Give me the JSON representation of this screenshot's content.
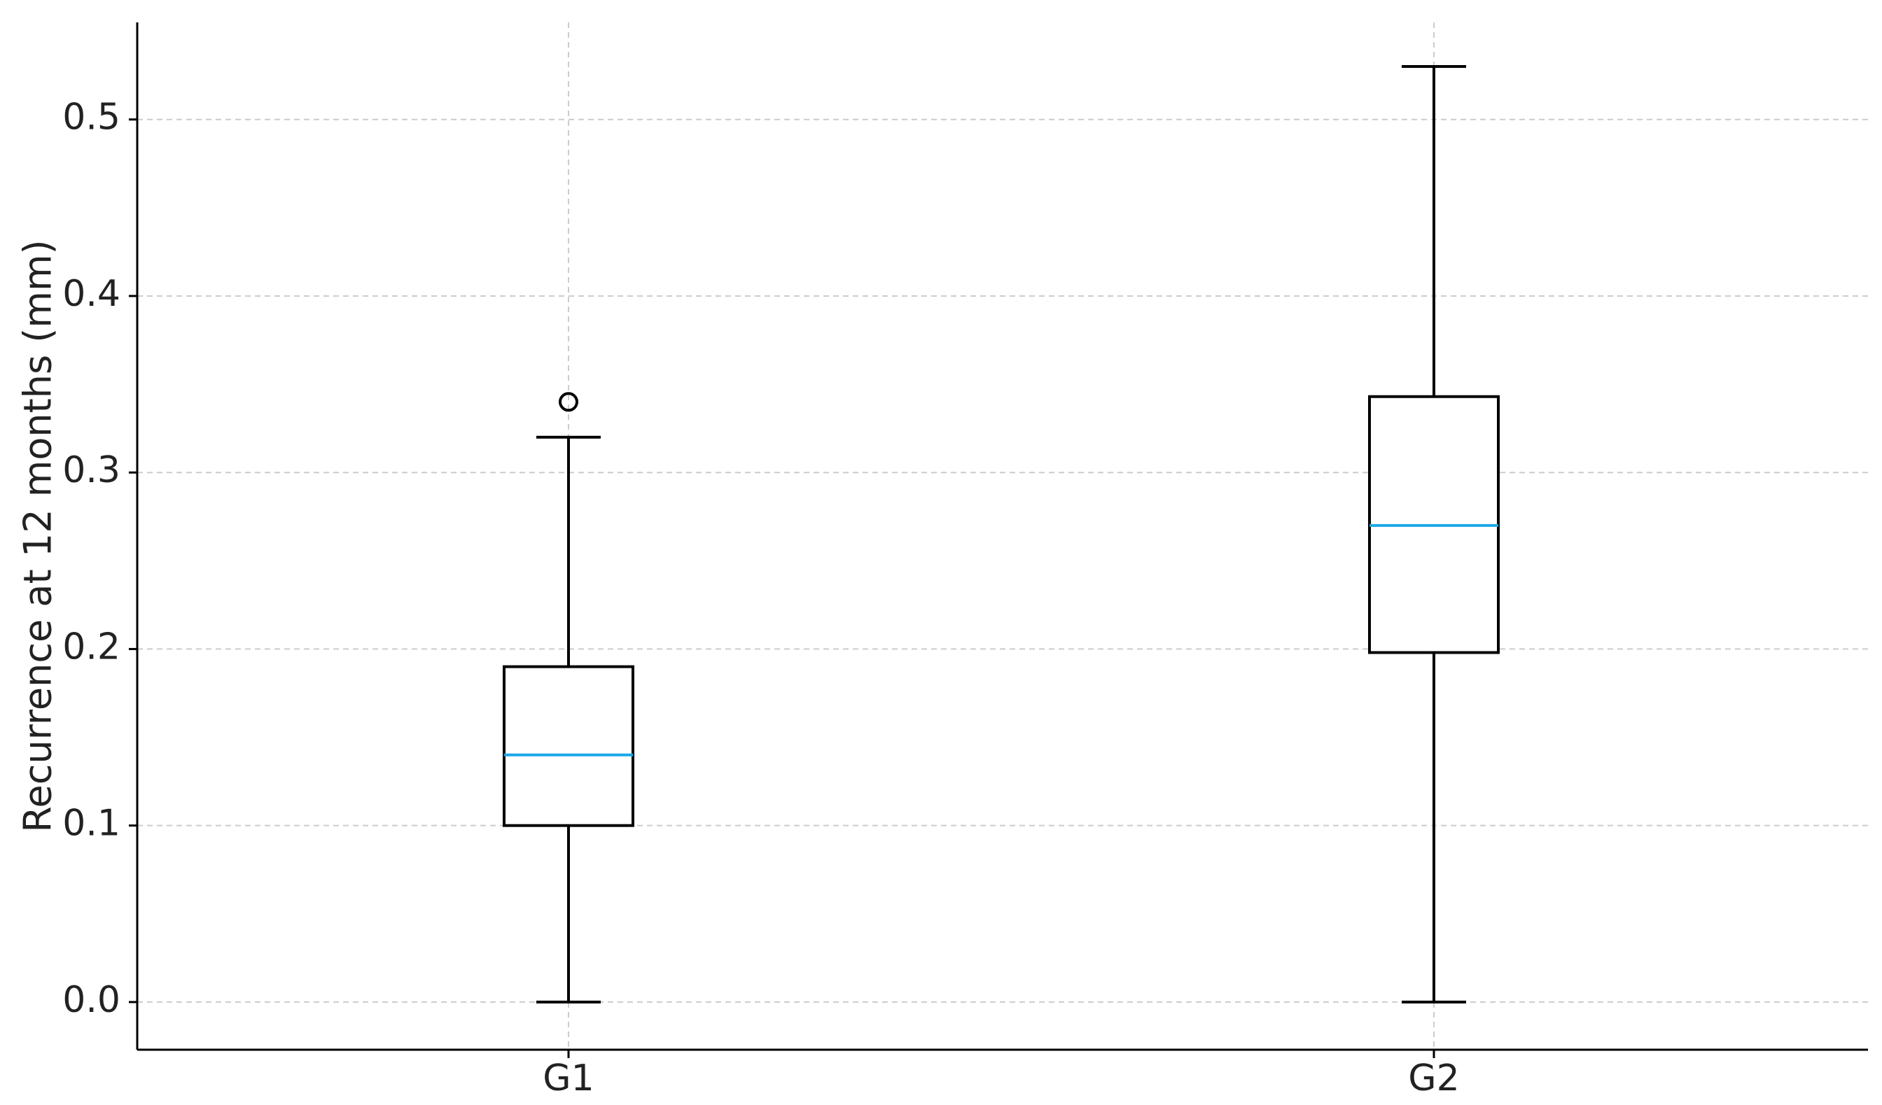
{
  "chart_data": {
    "type": "box",
    "title": "",
    "xlabel": "",
    "ylabel": "Recurrence at 12 months (mm)",
    "ylim": [
      -0.027,
      0.555
    ],
    "yticks": [
      0.0,
      0.1,
      0.2,
      0.3,
      0.4,
      0.5
    ],
    "ytick_labels": [
      "0.0",
      "0.1",
      "0.2",
      "0.3",
      "0.4",
      "0.5"
    ],
    "categories": [
      "G1",
      "G2"
    ],
    "grid": true,
    "grid_style": "dashed",
    "boxes": [
      {
        "category": "G1",
        "whisker_low": 0.0,
        "q1": 0.1,
        "median": 0.14,
        "q3": 0.19,
        "whisker_high": 0.32,
        "outliers": [
          0.34
        ]
      },
      {
        "category": "G2",
        "whisker_low": 0.0,
        "q1": 0.198,
        "median": 0.27,
        "q3": 0.343,
        "whisker_high": 0.53,
        "outliers": []
      }
    ],
    "colors": {
      "box_edge": "#000000",
      "median": "#1aa7e6",
      "grid": "#cccccc",
      "axis": "#000000"
    }
  }
}
